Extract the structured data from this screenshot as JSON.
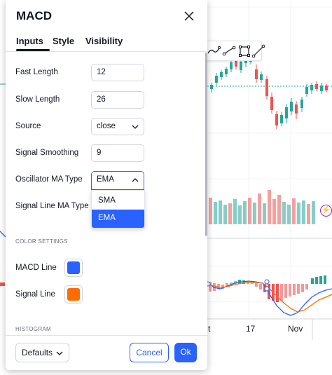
{
  "dialog": {
    "title": "MACD",
    "tabs": [
      "Inputs",
      "Style",
      "Visibility"
    ],
    "active_tab": "Inputs"
  },
  "inputs": {
    "fast_length": {
      "label": "Fast Length",
      "value": "12"
    },
    "slow_length": {
      "label": "Slow Length",
      "value": "26"
    },
    "source": {
      "label": "Source",
      "value": "close"
    },
    "signal_smoothing": {
      "label": "Signal Smoothing",
      "value": "9"
    },
    "oscillator_ma_type": {
      "label": "Oscillator MA Type",
      "value": "EMA"
    },
    "signal_line_ma_type": {
      "label": "Signal Line MA Type"
    }
  },
  "dropdown": {
    "options": [
      "SMA",
      "EMA"
    ],
    "selected": "EMA"
  },
  "color_settings": {
    "title": "COLOR SETTINGS",
    "macd_line": {
      "label": "MACD Line",
      "color": "#2962ff"
    },
    "signal_line": {
      "label": "Signal Line",
      "color": "#ff6d00"
    }
  },
  "histogram": {
    "title": "HISTOGRAM"
  },
  "footer": {
    "defaults_label": "Defaults",
    "cancel_label": "Cancel",
    "ok_label": "Ok"
  },
  "chart_bg": {
    "date_labels": [
      "t",
      "17",
      "Nov"
    ],
    "colors": {
      "up": "#26a69a",
      "down": "#ef5350",
      "macd": "#2962ff",
      "signal": "#ff6d00"
    }
  }
}
